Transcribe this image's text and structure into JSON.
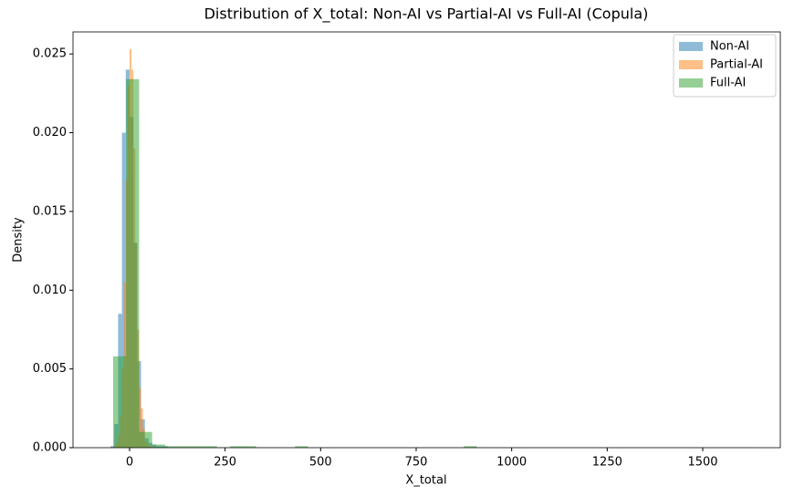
{
  "chart_data": {
    "type": "histogram",
    "title": "Distribution of X_total: Non-AI vs Partial-AI vs Full-AI (Copula)",
    "x_label": "X_total",
    "y_label": "Density",
    "xlim": [
      -148,
      1703
    ],
    "ylim": [
      0,
      0.0264
    ],
    "xticks": [
      0,
      250,
      500,
      750,
      1000,
      1250,
      1500
    ],
    "yticks": [
      {
        "value": 0,
        "label": "0.000"
      },
      {
        "value": 0.005,
        "label": "0.005"
      },
      {
        "value": 0.01,
        "label": "0.010"
      },
      {
        "value": 0.015,
        "label": "0.015"
      },
      {
        "value": 0.02,
        "label": "0.020"
      },
      {
        "value": 0.025,
        "label": "0.025"
      }
    ],
    "legend": "upper right",
    "opacity": 0.5,
    "series": [
      {
        "name": "Non-AI",
        "color": "#1f77b4",
        "bins": [
          -50,
          -40,
          -30,
          -20,
          -10,
          0,
          10,
          20,
          30,
          40,
          50,
          60,
          70,
          80,
          90,
          100,
          400,
          1000,
          1640
        ],
        "values": [
          0.0001,
          0.0015,
          0.0085,
          0.02,
          0.024,
          0.021,
          0.013,
          0.0055,
          0.0018,
          0.0006,
          0.0003,
          0.0002,
          0.0001,
          0.0001,
          0.0001,
          2e-05,
          1e-05,
          1e-05
        ]
      },
      {
        "name": "Partial-AI",
        "color": "#ff7f0e",
        "bins": [
          -40,
          -35,
          -30,
          -25,
          -20,
          -15,
          -10,
          -5,
          0,
          5,
          10,
          15,
          20,
          25,
          30,
          35,
          40,
          45,
          50,
          55,
          60
        ],
        "values": [
          0.0001,
          0.0003,
          0.0008,
          0.002,
          0.005,
          0.0105,
          0.017,
          0.023,
          0.0253,
          0.024,
          0.019,
          0.013,
          0.0075,
          0.0038,
          0.0025,
          0.0012,
          0.0004,
          0.0002,
          0.0001,
          0.0001
        ]
      },
      {
        "name": "Full-AI",
        "color": "#2ca02c",
        "bins": [
          -43,
          -9,
          25,
          59,
          93,
          127,
          161,
          195,
          229,
          263,
          297,
          331,
          365,
          399,
          433,
          467,
          501,
          535,
          569,
          603,
          637,
          671,
          705,
          739,
          773,
          807,
          841,
          875,
          909
        ],
        "values": [
          0.0058,
          0.0234,
          0.001,
          0.0002,
          0.0001,
          0.0001,
          0.0001,
          0.0001,
          0,
          0.0001,
          0.0001,
          0,
          0,
          0,
          0.0001,
          0,
          0,
          0,
          0,
          0,
          0,
          0,
          0,
          0,
          0,
          0,
          0,
          0.0001
        ]
      }
    ]
  }
}
